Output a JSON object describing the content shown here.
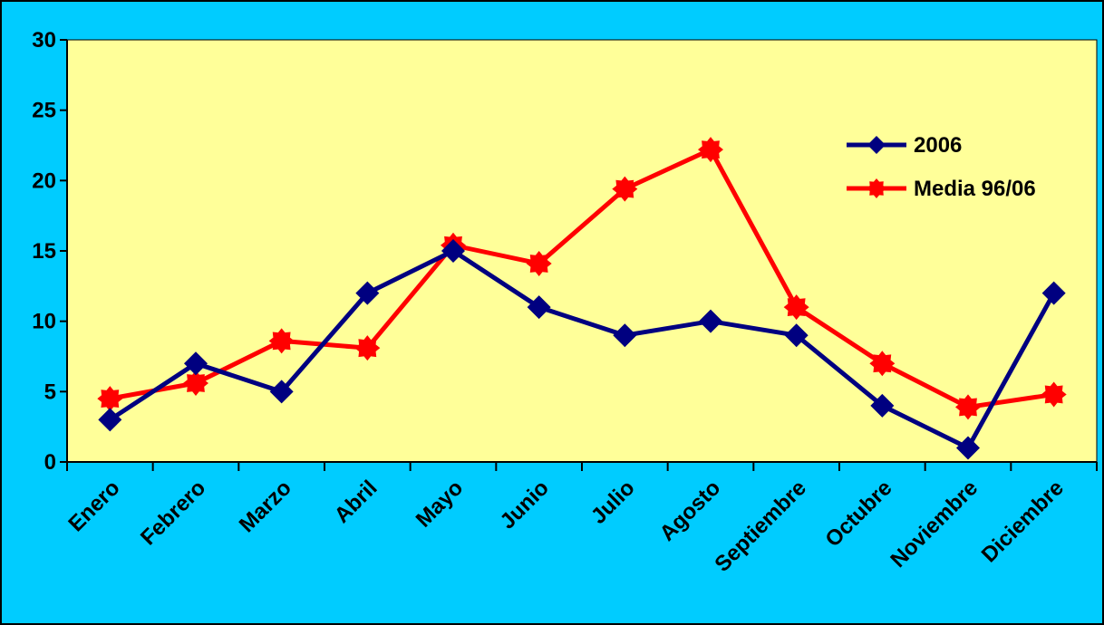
{
  "chart_data": {
    "type": "line",
    "categories": [
      "Enero",
      "Febrero",
      "Marzo",
      "Abril",
      "Mayo",
      "Junio",
      "Julio",
      "Agosto",
      "Septiembre",
      "Octubre",
      "Noviembre",
      "Diciembre"
    ],
    "series": [
      {
        "name": "2006",
        "values": [
          3,
          7,
          5,
          12,
          15,
          11,
          9,
          10,
          9,
          4,
          1,
          12
        ],
        "color": "#000080",
        "marker": "diamond"
      },
      {
        "name": "Media 96/06",
        "values": [
          4.5,
          5.6,
          8.6,
          8.1,
          15.4,
          14.1,
          19.4,
          22.2,
          11,
          7,
          3.9,
          4.8
        ],
        "color": "#ff0000",
        "marker": "star"
      }
    ],
    "ylim": [
      0,
      30
    ],
    "yticks": [
      0,
      5,
      10,
      15,
      20,
      25,
      30
    ],
    "title": "",
    "xlabel": "",
    "ylabel": "",
    "grid": false,
    "legend_position": "top-right",
    "plot_background": "#ffff99",
    "chart_background": "#00ccff"
  }
}
